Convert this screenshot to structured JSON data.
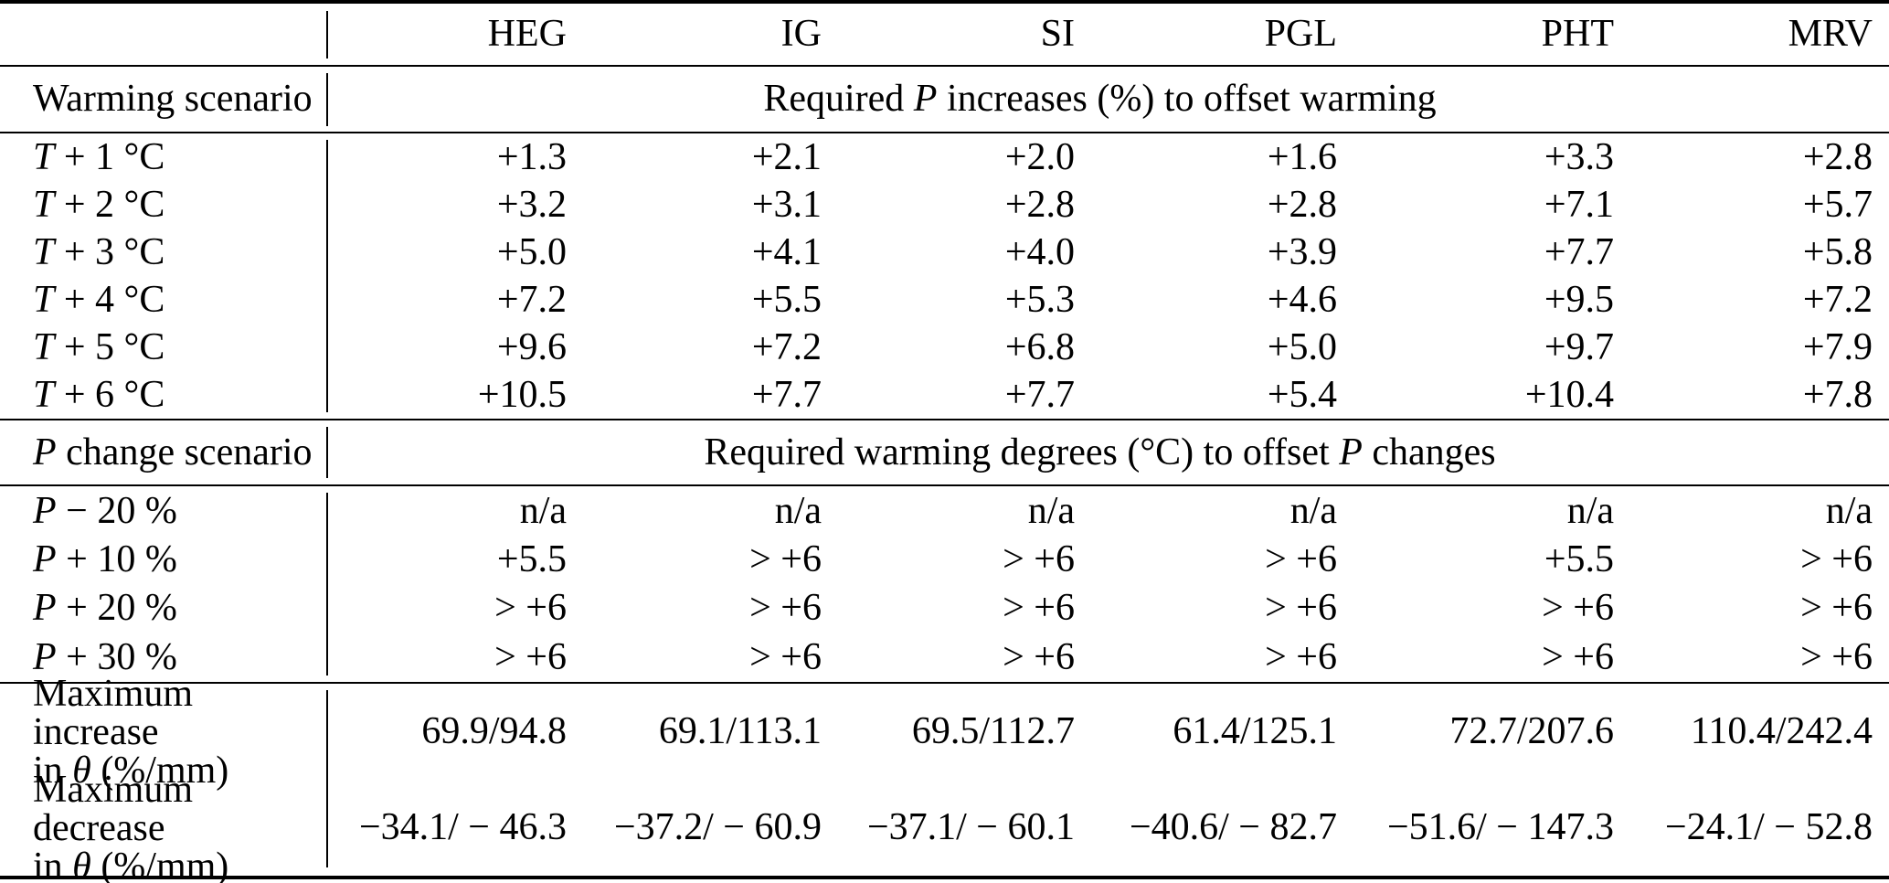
{
  "table": {
    "columns": [
      "HEG",
      "IG",
      "SI",
      "PGL",
      "PHT",
      "MRV"
    ],
    "warming": {
      "section_label": "Warming scenario",
      "section_title": {
        "pre": "Required ",
        "var": "P",
        "post": " increases (%) to offset warming"
      },
      "rows": [
        {
          "label": {
            "var": "T",
            "rest": " + 1 °C"
          },
          "values": [
            "+1.3",
            "+2.1",
            "+2.0",
            "+1.6",
            "+3.3",
            "+2.8"
          ]
        },
        {
          "label": {
            "var": "T",
            "rest": " + 2 °C"
          },
          "values": [
            "+3.2",
            "+3.1",
            "+2.8",
            "+2.8",
            "+7.1",
            "+5.7"
          ]
        },
        {
          "label": {
            "var": "T",
            "rest": " + 3 °C"
          },
          "values": [
            "+5.0",
            "+4.1",
            "+4.0",
            "+3.9",
            "+7.7",
            "+5.8"
          ]
        },
        {
          "label": {
            "var": "T",
            "rest": " + 4 °C"
          },
          "values": [
            "+7.2",
            "+5.5",
            "+5.3",
            "+4.6",
            "+9.5",
            "+7.2"
          ]
        },
        {
          "label": {
            "var": "T",
            "rest": " + 5 °C"
          },
          "values": [
            "+9.6",
            "+7.2",
            "+6.8",
            "+5.0",
            "+9.7",
            "+7.9"
          ]
        },
        {
          "label": {
            "var": "T",
            "rest": " + 6 °C"
          },
          "values": [
            "+10.5",
            "+7.7",
            "+7.7",
            "+5.4",
            "+10.4",
            "+7.8"
          ]
        }
      ]
    },
    "pchange": {
      "section_label": {
        "var": "P",
        "rest": " change scenario"
      },
      "section_title": {
        "pre": "Required warming degrees (°C) to offset ",
        "var": "P",
        "post": " changes"
      },
      "rows": [
        {
          "label": {
            "var": "P",
            "rest": " − 20 %"
          },
          "values": [
            "n/a",
            "n/a",
            "n/a",
            "n/a",
            "n/a",
            "n/a"
          ]
        },
        {
          "label": {
            "var": "P",
            "rest": " + 10 %"
          },
          "values": [
            "+5.5",
            "> +6",
            "> +6",
            "> +6",
            "+5.5",
            "> +6"
          ]
        },
        {
          "label": {
            "var": "P",
            "rest": " + 20 %"
          },
          "values": [
            "> +6",
            "> +6",
            "> +6",
            "> +6",
            "> +6",
            "> +6"
          ]
        },
        {
          "label": {
            "var": "P",
            "rest": " + 30 %"
          },
          "values": [
            "> +6",
            "> +6",
            "> +6",
            "> +6",
            "> +6",
            "> +6"
          ]
        }
      ]
    },
    "theta": {
      "rows": [
        {
          "label": {
            "line1": "Maximum increase",
            "line2_pre": "in ",
            "line2_var": "θ",
            "line2_post": " (%/mm)"
          },
          "values": [
            "69.9/94.8",
            "69.1/113.1",
            "69.5/112.7",
            "61.4/125.1",
            "72.7/207.6",
            "110.4/242.4"
          ]
        },
        {
          "label": {
            "line1": "Maximum decrease",
            "line2_pre": "in ",
            "line2_var": "θ",
            "line2_post": " (%/mm)"
          },
          "values": [
            "−34.1/ − 46.3",
            "−37.2/ − 60.9",
            "−37.1/ − 60.1",
            "−40.6/ − 82.7",
            "−51.6/ − 147.3",
            "−24.1/ − 52.8"
          ]
        }
      ]
    }
  }
}
